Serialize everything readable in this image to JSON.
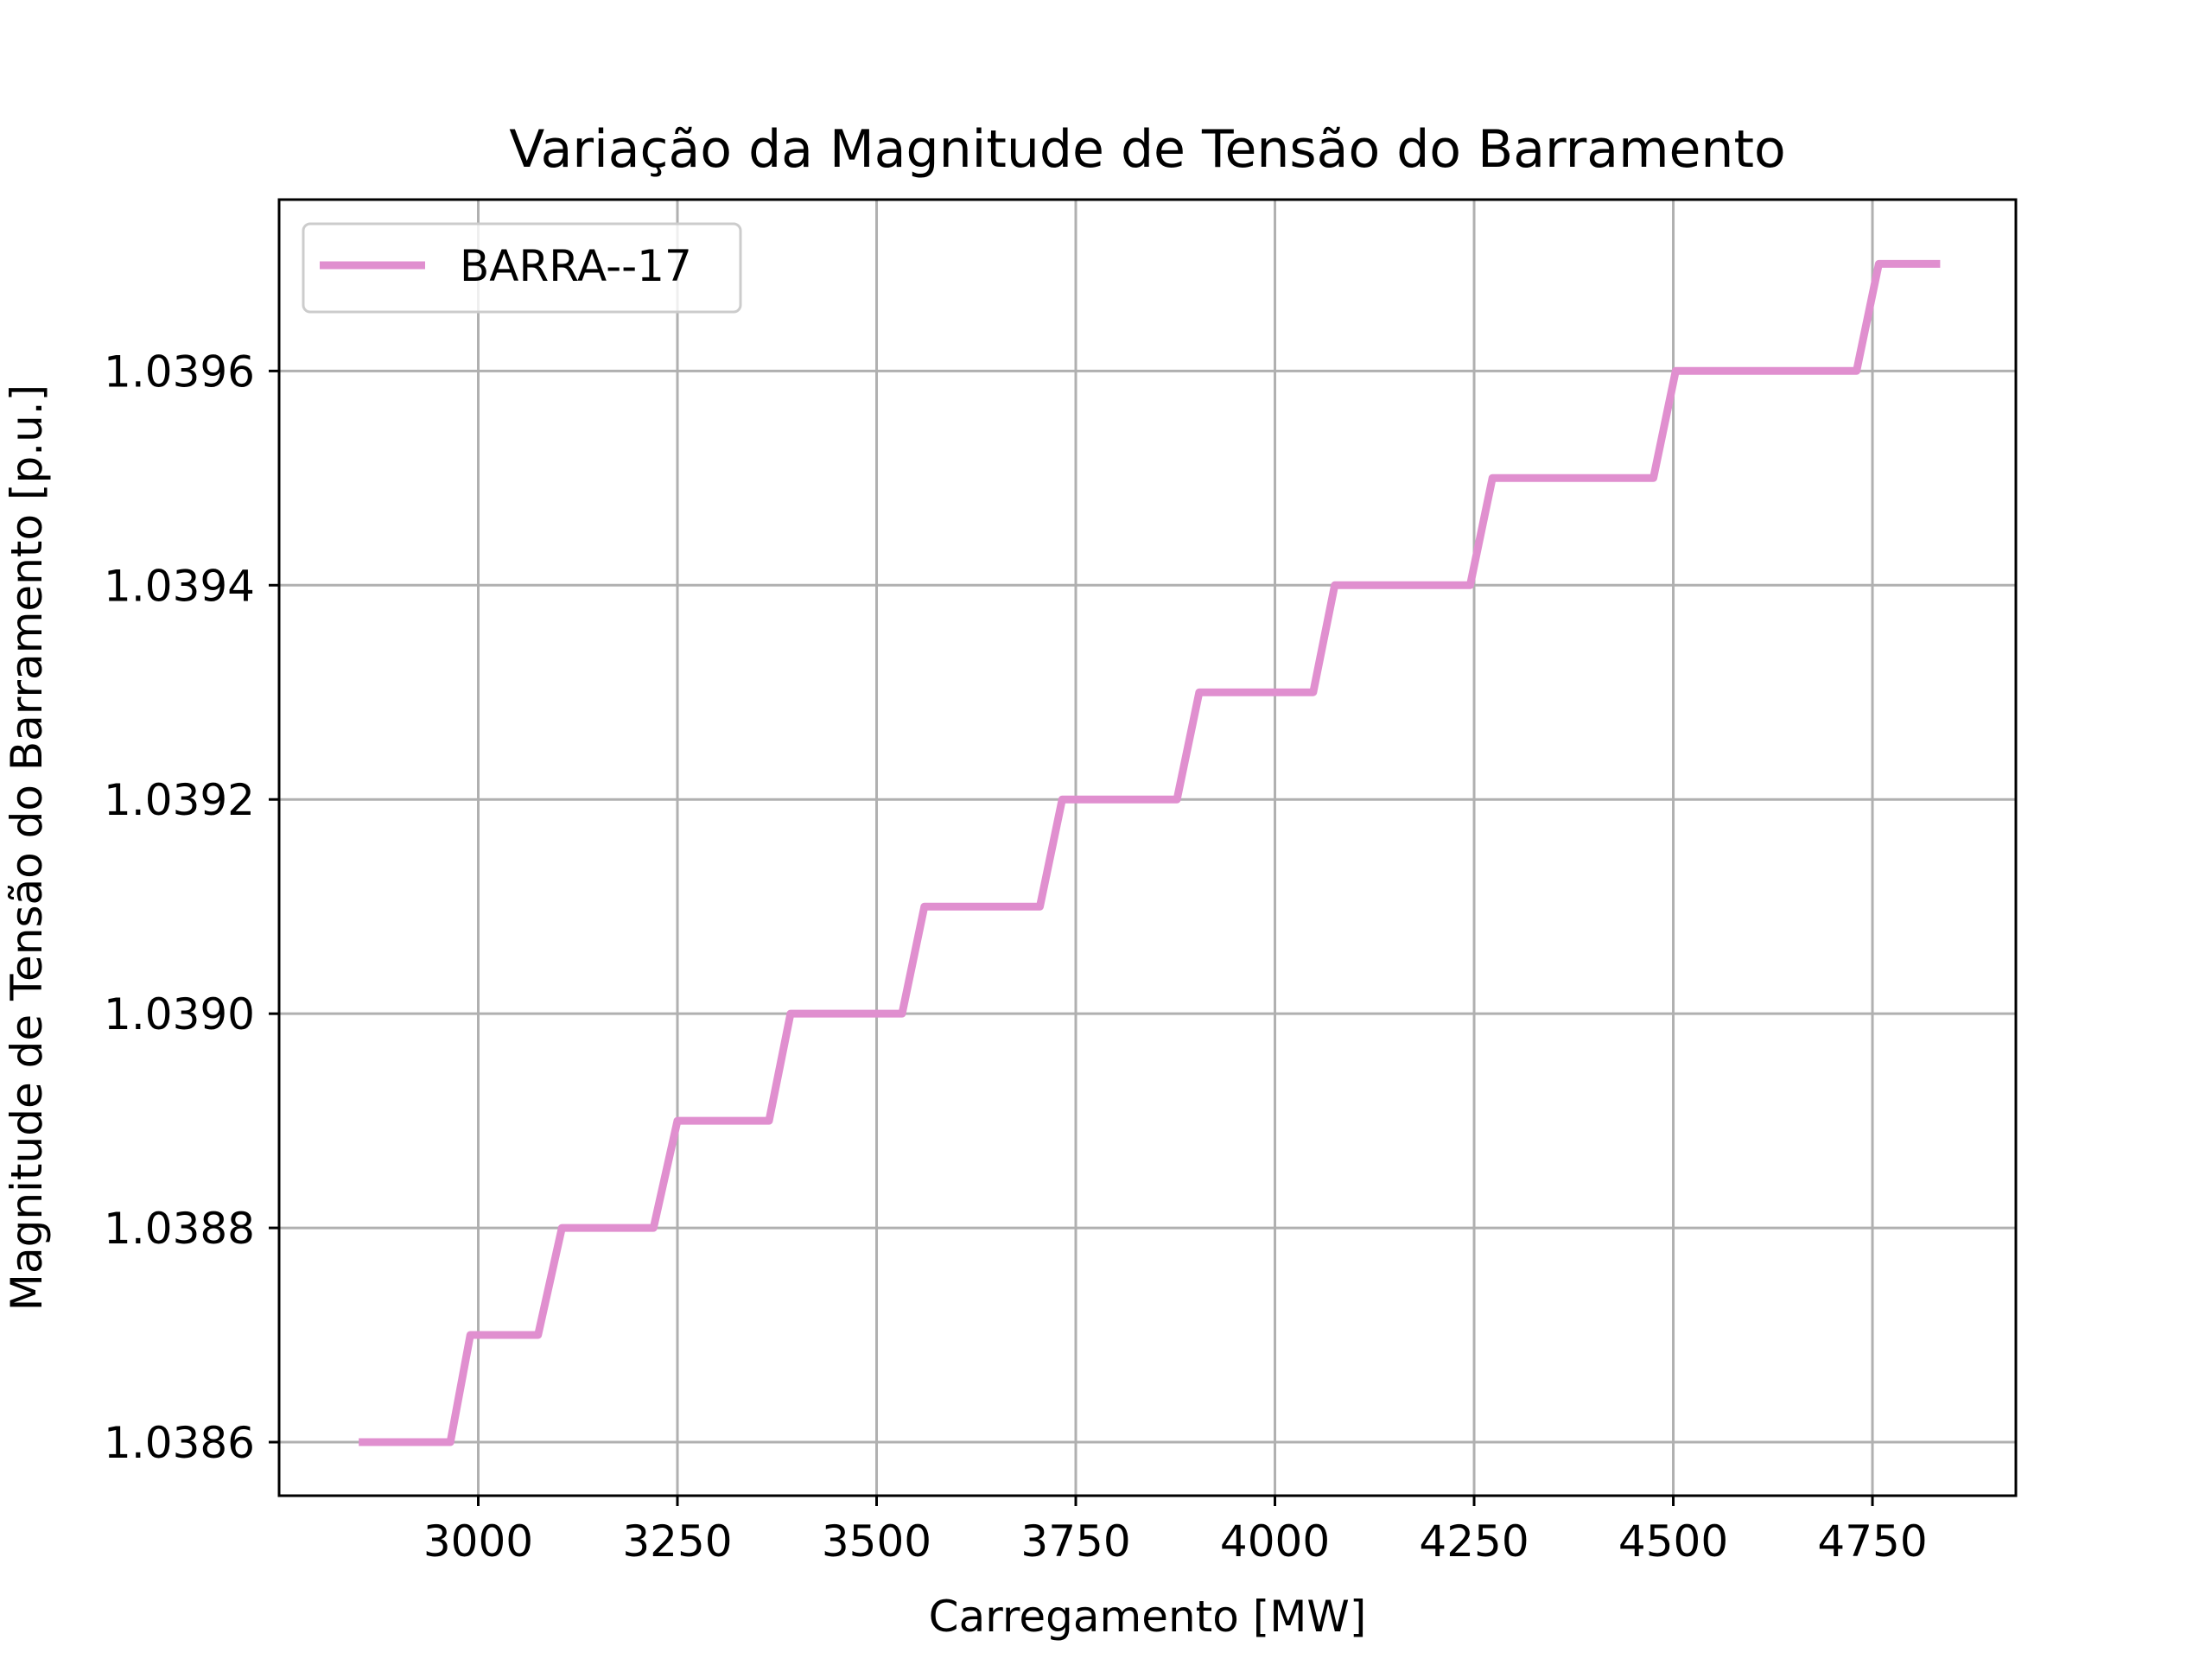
{
  "chart_data": {
    "type": "line",
    "title": "Variação da Magnitude de Tensão do Barramento",
    "xlabel": "Carregamento [MW]",
    "ylabel": "Magnitude de Tensão do Barramento [p.u.]",
    "xlim": [
      2750,
      4930
    ],
    "ylim": [
      1.03855,
      1.03976
    ],
    "xticks": [
      3000,
      3250,
      3500,
      3750,
      4000,
      4250,
      4500,
      4750
    ],
    "xtick_labels": [
      "3000",
      "3250",
      "3500",
      "3750",
      "4000",
      "4250",
      "4500",
      "4750"
    ],
    "yticks": [
      1.0386,
      1.0388,
      1.039,
      1.0392,
      1.0394,
      1.0396
    ],
    "ytick_labels": [
      "1.0386",
      "1.0388",
      "1.0390",
      "1.0392",
      "1.0394",
      "1.0396"
    ],
    "grid": true,
    "legend_position": "upper-left",
    "series": [
      {
        "name": "BARRA--17",
        "color": "#e08fcf",
        "x": [
          2850,
          2965,
          2990,
          3075,
          3105,
          3220,
          3250,
          3365,
          3392,
          3532,
          3560,
          3705,
          3733,
          3877,
          3905,
          4048,
          4075,
          4245,
          4273,
          4475,
          4503,
          4730,
          4758,
          4835
        ],
        "y": [
          1.0386,
          1.0386,
          1.0387,
          1.0387,
          1.0388,
          1.0388,
          1.0389,
          1.0389,
          1.039,
          1.039,
          1.0391,
          1.0391,
          1.0392,
          1.0392,
          1.0393,
          1.0393,
          1.0394,
          1.0394,
          1.0395,
          1.0395,
          1.0396,
          1.0396,
          1.0397,
          1.0397
        ]
      }
    ]
  }
}
